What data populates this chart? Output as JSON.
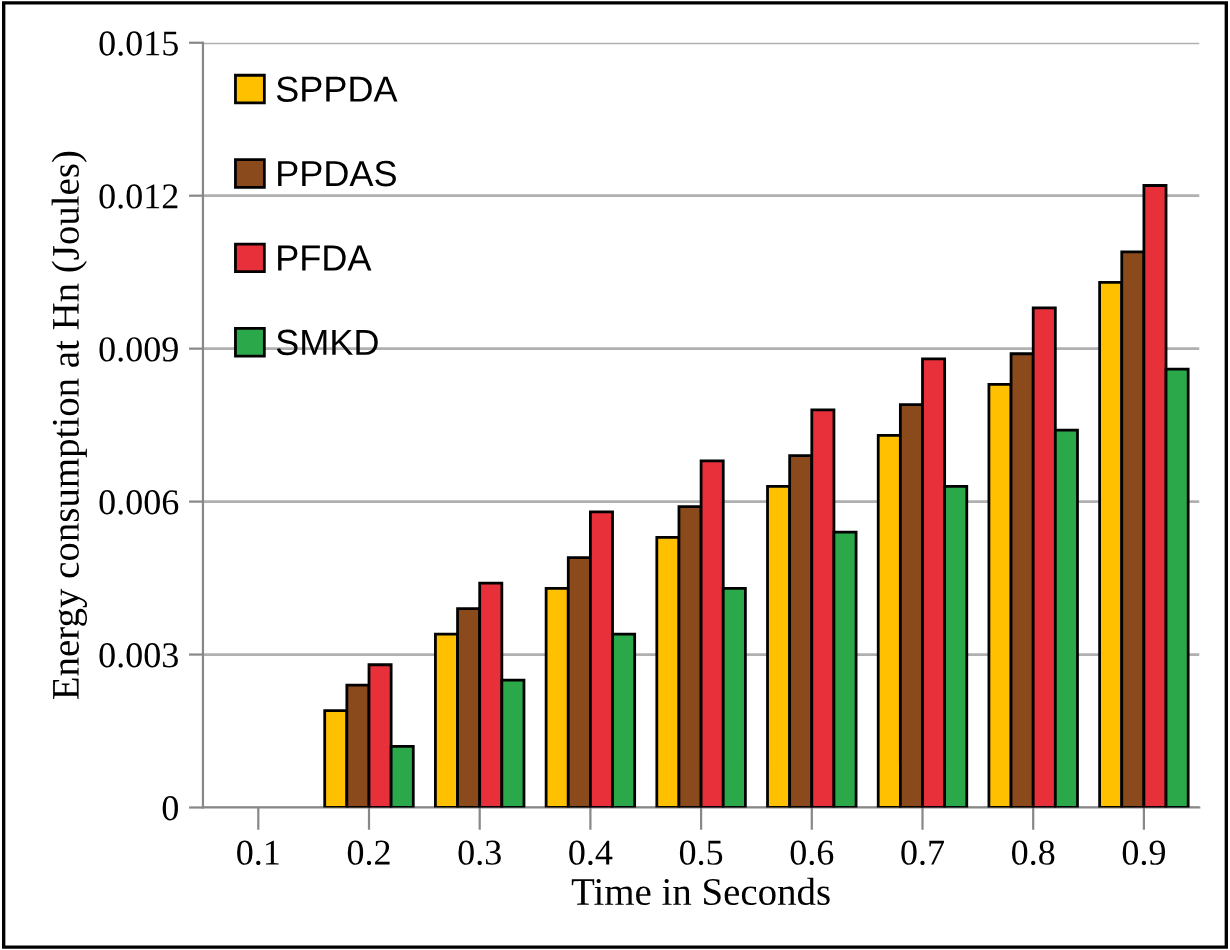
{
  "chart_data": {
    "type": "bar",
    "xlabel": "Time in Seconds",
    "ylabel": "Energy consumption at Hn (Joules)",
    "categories": [
      "0.1",
      "0.2",
      "0.3",
      "0.4",
      "0.5",
      "0.6",
      "0.7",
      "0.8",
      "0.9"
    ],
    "series": [
      {
        "name": "SPPDA",
        "color": "#ffc000",
        "values": [
          null,
          0.0019,
          0.0034,
          0.0043,
          0.0053,
          0.0063,
          0.0073,
          0.0083,
          0.0103
        ]
      },
      {
        "name": "PPDAS",
        "color": "#8b4a1c",
        "values": [
          null,
          0.0024,
          0.0039,
          0.0049,
          0.0059,
          0.0069,
          0.0079,
          0.0089,
          0.0109
        ]
      },
      {
        "name": "PFDA",
        "color": "#e8303a",
        "values": [
          null,
          0.0028,
          0.0044,
          0.0058,
          0.0068,
          0.0078,
          0.0088,
          0.0098,
          0.0122
        ]
      },
      {
        "name": "SMKD",
        "color": "#2aa84a",
        "values": [
          null,
          0.0012,
          0.0025,
          0.0034,
          0.0043,
          0.0054,
          0.0063,
          0.0074,
          0.0086
        ]
      }
    ],
    "ylim": [
      0,
      0.015
    ],
    "yticks": [
      0,
      0.003,
      0.006,
      0.009,
      0.012,
      0.015
    ],
    "grid": "y",
    "legend": "top left"
  }
}
